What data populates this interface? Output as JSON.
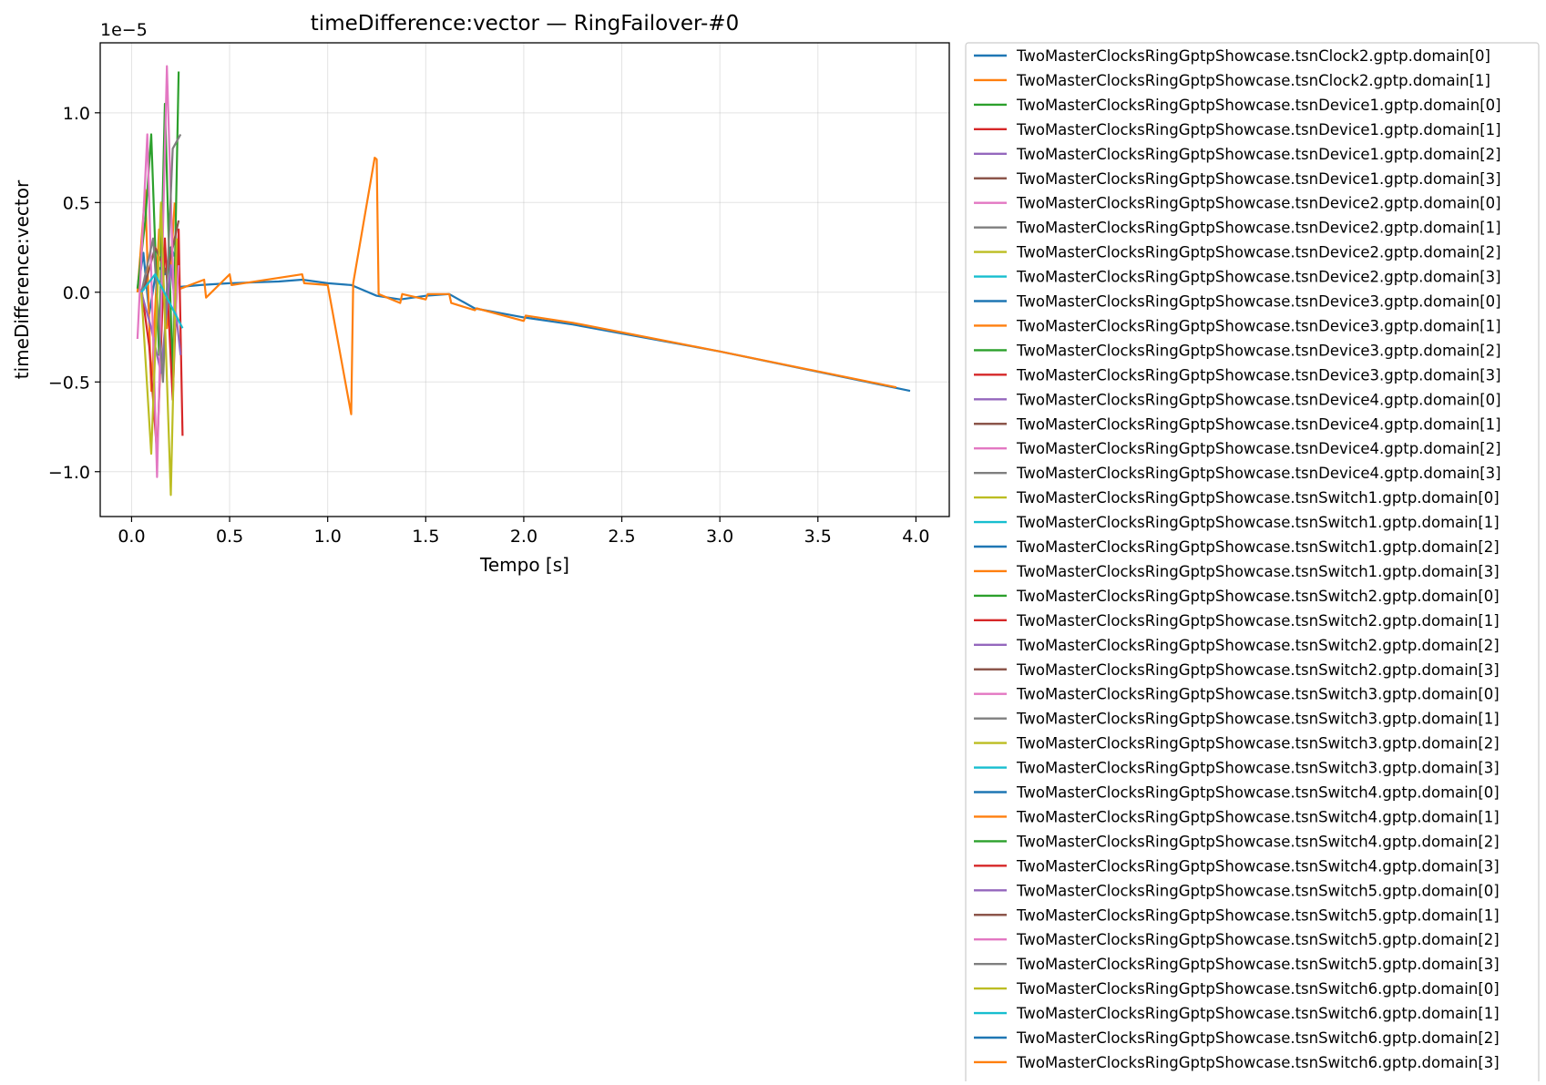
{
  "chart_data": {
    "type": "line",
    "title": "timeDifference:vector — RingFailover-#0",
    "xlabel": "Tempo [s]",
    "ylabel": "timeDifference:vector",
    "y_offset_text": "1e−5",
    "y_scale": 1e-05,
    "xlim": [
      -0.16,
      4.17
    ],
    "ylim": [
      -1.25,
      1.39
    ],
    "xticks": [
      0.0,
      0.5,
      1.0,
      1.5,
      2.0,
      2.5,
      3.0,
      3.5,
      4.0
    ],
    "xtick_labels": [
      "0.0",
      "0.5",
      "1.0",
      "1.5",
      "2.0",
      "2.5",
      "3.0",
      "3.5",
      "4.0"
    ],
    "yticks": [
      -1.0,
      -0.5,
      0.0,
      0.5,
      1.0
    ],
    "ytick_labels": [
      "−1.0",
      "−0.5",
      "0.0",
      "0.5",
      "1.0"
    ],
    "grid": true,
    "legend_position": "outside-right",
    "series": [
      {
        "name": "TwoMasterClocksRingGptpShowcase.tsnClock2.gptp.domain[0]",
        "color": "#1f77b4",
        "x": [
          0.03,
          0.06,
          0.09,
          0.13,
          0.17,
          0.2,
          0.22
        ],
        "y": [
          0.0,
          0.22,
          -0.12,
          0.15,
          0.1,
          0.25,
          0.2
        ]
      },
      {
        "name": "TwoMasterClocksRingGptpShowcase.tsnClock2.gptp.domain[1]",
        "color": "#ff7f0e",
        "x": [
          0.03,
          0.07,
          0.1,
          0.14,
          0.18,
          0.22
        ],
        "y": [
          0.0,
          0.57,
          -0.55,
          0.35,
          -0.2,
          0.5
        ]
      },
      {
        "name": "TwoMasterClocksRingGptpShowcase.tsnDevice1.gptp.domain[0]",
        "color": "#2ca02c",
        "x": [
          0.03,
          0.07,
          0.1,
          0.14,
          0.17,
          0.21,
          0.24
        ],
        "y": [
          0.02,
          0.4,
          0.88,
          -0.35,
          1.05,
          -0.5,
          1.23
        ]
      },
      {
        "name": "TwoMasterClocksRingGptpShowcase.tsnDevice1.gptp.domain[1]",
        "color": "#d62728",
        "x": [
          0.05,
          0.09,
          0.13,
          0.17,
          0.21,
          0.24,
          0.26
        ],
        "y": [
          0.02,
          -0.3,
          -0.9,
          0.3,
          -0.6,
          0.35,
          -0.8
        ]
      },
      {
        "name": "TwoMasterClocksRingGptpShowcase.tsnDevice1.gptp.domain[2]",
        "color": "#9467bd",
        "x": [
          0.05,
          0.1,
          0.15,
          0.2,
          0.25
        ],
        "y": [
          0.0,
          -0.2,
          -0.45,
          0.15,
          -0.35
        ]
      },
      {
        "name": "TwoMasterClocksRingGptpShowcase.tsnDevice1.gptp.domain[3]",
        "color": "#8c564b",
        "x": [
          0.06,
          0.12,
          0.18,
          0.24
        ],
        "y": [
          0.01,
          0.25,
          0.1,
          0.4
        ]
      },
      {
        "name": "TwoMasterClocksRingGptpShowcase.tsnDevice2.gptp.domain[0]",
        "color": "#e377c2",
        "x": [
          0.03,
          0.08,
          0.13,
          0.18,
          0.22,
          0.24
        ],
        "y": [
          -0.26,
          0.88,
          -1.03,
          1.26,
          -0.2,
          0.15
        ]
      },
      {
        "name": "TwoMasterClocksRingGptpShowcase.tsnDevice2.gptp.domain[1]",
        "color": "#7f7f7f",
        "x": [
          0.05,
          0.11,
          0.16,
          0.21,
          0.25
        ],
        "y": [
          0.0,
          0.3,
          -0.5,
          0.8,
          0.88
        ]
      },
      {
        "name": "TwoMasterClocksRingGptpShowcase.tsnDevice2.gptp.domain[2]",
        "color": "#bcbd22",
        "x": [
          0.05,
          0.1,
          0.15,
          0.2,
          0.23
        ],
        "y": [
          0.0,
          -0.9,
          0.5,
          -1.13,
          0.3
        ]
      },
      {
        "name": "TwoMasterClocksRingGptpShowcase.tsnDevice2.gptp.domain[3]",
        "color": "#17becf",
        "x": [
          0.05,
          0.12,
          0.19,
          0.26
        ],
        "y": [
          0.0,
          0.1,
          -0.05,
          -0.2
        ]
      },
      {
        "name": "TwoMasterClocksRingGptpShowcase.tsnDevice3.gptp.domain[0]",
        "color": "#1f77b4",
        "x": [
          0.25,
          0.35,
          0.5,
          0.75,
          0.87,
          1.0,
          1.12,
          1.25,
          1.37,
          1.5,
          1.62,
          1.75,
          2.0,
          2.25,
          3.0,
          3.97
        ],
        "y": [
          0.03,
          0.04,
          0.05,
          0.06,
          0.07,
          0.05,
          0.04,
          -0.02,
          -0.04,
          -0.02,
          -0.01,
          -0.09,
          -0.14,
          -0.18,
          -0.33,
          -0.55
        ]
      },
      {
        "name": "TwoMasterClocksRingGptpShowcase.tsnDevice3.gptp.domain[1]",
        "color": "#ff7f0e",
        "x": [
          0.25,
          0.37,
          0.38,
          0.5,
          0.51,
          0.87,
          0.88,
          1.0,
          1.12,
          1.13,
          1.24,
          1.25,
          1.26,
          1.37,
          1.38,
          1.5,
          1.51,
          1.62,
          1.63,
          1.75,
          1.76,
          2.0,
          2.01,
          2.25,
          3.0,
          3.9
        ],
        "y": [
          0.02,
          0.07,
          -0.03,
          0.1,
          0.04,
          0.1,
          0.05,
          0.04,
          -0.68,
          0.05,
          0.75,
          0.74,
          -0.01,
          -0.06,
          -0.01,
          -0.04,
          -0.01,
          -0.01,
          -0.06,
          -0.1,
          -0.09,
          -0.16,
          -0.13,
          -0.17,
          -0.33,
          -0.53
        ]
      }
    ],
    "more_legend_entries": [
      {
        "name": "TwoMasterClocksRingGptpShowcase.tsnDevice3.gptp.domain[2]",
        "color": "#2ca02c"
      },
      {
        "name": "TwoMasterClocksRingGptpShowcase.tsnDevice3.gptp.domain[3]",
        "color": "#d62728"
      },
      {
        "name": "TwoMasterClocksRingGptpShowcase.tsnDevice4.gptp.domain[0]",
        "color": "#9467bd"
      },
      {
        "name": "TwoMasterClocksRingGptpShowcase.tsnDevice4.gptp.domain[1]",
        "color": "#8c564b"
      },
      {
        "name": "TwoMasterClocksRingGptpShowcase.tsnDevice4.gptp.domain[2]",
        "color": "#e377c2"
      },
      {
        "name": "TwoMasterClocksRingGptpShowcase.tsnDevice4.gptp.domain[3]",
        "color": "#7f7f7f"
      },
      {
        "name": "TwoMasterClocksRingGptpShowcase.tsnSwitch1.gptp.domain[0]",
        "color": "#bcbd22"
      },
      {
        "name": "TwoMasterClocksRingGptpShowcase.tsnSwitch1.gptp.domain[1]",
        "color": "#17becf"
      },
      {
        "name": "TwoMasterClocksRingGptpShowcase.tsnSwitch1.gptp.domain[2]",
        "color": "#1f77b4"
      },
      {
        "name": "TwoMasterClocksRingGptpShowcase.tsnSwitch1.gptp.domain[3]",
        "color": "#ff7f0e"
      },
      {
        "name": "TwoMasterClocksRingGptpShowcase.tsnSwitch2.gptp.domain[0]",
        "color": "#2ca02c"
      },
      {
        "name": "TwoMasterClocksRingGptpShowcase.tsnSwitch2.gptp.domain[1]",
        "color": "#d62728"
      },
      {
        "name": "TwoMasterClocksRingGptpShowcase.tsnSwitch2.gptp.domain[2]",
        "color": "#9467bd"
      },
      {
        "name": "TwoMasterClocksRingGptpShowcase.tsnSwitch2.gptp.domain[3]",
        "color": "#8c564b"
      },
      {
        "name": "TwoMasterClocksRingGptpShowcase.tsnSwitch3.gptp.domain[0]",
        "color": "#e377c2"
      },
      {
        "name": "TwoMasterClocksRingGptpShowcase.tsnSwitch3.gptp.domain[1]",
        "color": "#7f7f7f"
      },
      {
        "name": "TwoMasterClocksRingGptpShowcase.tsnSwitch3.gptp.domain[2]",
        "color": "#bcbd22"
      },
      {
        "name": "TwoMasterClocksRingGptpShowcase.tsnSwitch3.gptp.domain[3]",
        "color": "#17becf"
      },
      {
        "name": "TwoMasterClocksRingGptpShowcase.tsnSwitch4.gptp.domain[0]",
        "color": "#1f77b4"
      },
      {
        "name": "TwoMasterClocksRingGptpShowcase.tsnSwitch4.gptp.domain[1]",
        "color": "#ff7f0e"
      },
      {
        "name": "TwoMasterClocksRingGptpShowcase.tsnSwitch4.gptp.domain[2]",
        "color": "#2ca02c"
      },
      {
        "name": "TwoMasterClocksRingGptpShowcase.tsnSwitch4.gptp.domain[3]",
        "color": "#d62728"
      },
      {
        "name": "TwoMasterClocksRingGptpShowcase.tsnSwitch5.gptp.domain[0]",
        "color": "#9467bd"
      },
      {
        "name": "TwoMasterClocksRingGptpShowcase.tsnSwitch5.gptp.domain[1]",
        "color": "#8c564b"
      },
      {
        "name": "TwoMasterClocksRingGptpShowcase.tsnSwitch5.gptp.domain[2]",
        "color": "#e377c2"
      },
      {
        "name": "TwoMasterClocksRingGptpShowcase.tsnSwitch5.gptp.domain[3]",
        "color": "#7f7f7f"
      },
      {
        "name": "TwoMasterClocksRingGptpShowcase.tsnSwitch6.gptp.domain[0]",
        "color": "#bcbd22"
      },
      {
        "name": "TwoMasterClocksRingGptpShowcase.tsnSwitch6.gptp.domain[1]",
        "color": "#17becf"
      },
      {
        "name": "TwoMasterClocksRingGptpShowcase.tsnSwitch6.gptp.domain[2]",
        "color": "#1f77b4"
      },
      {
        "name": "TwoMasterClocksRingGptpShowcase.tsnSwitch6.gptp.domain[3]",
        "color": "#ff7f0e"
      }
    ]
  }
}
